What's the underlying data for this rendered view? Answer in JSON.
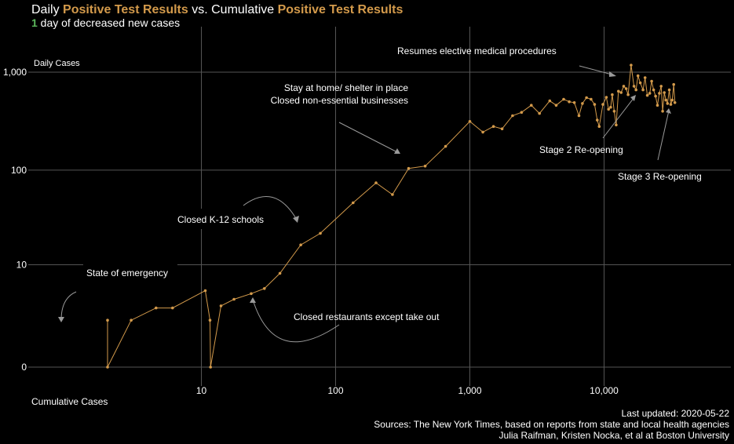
{
  "header": {
    "title_part1": "Daily ",
    "title_highlight1": "Positive Test Results",
    "title_part2": " vs. Cumulative ",
    "title_highlight2": "Positive Test Results",
    "subtitle_count": "1",
    "subtitle_text": " day of decreased new cases"
  },
  "footer": {
    "last_updated": "Last updated: 2020-05-22",
    "sources": "Sources: The New York Times, based on reports from state and local health agencies",
    "authors": "Julia Raifman,  Kristen Nocka, et al at Boston University"
  },
  "colors": {
    "series": "#d39a4b",
    "background": "#000000",
    "grid": "#555555",
    "text": "#ffffff",
    "highlight_green": "#5cb85c"
  },
  "chart_data": {
    "type": "line",
    "xscale": "log",
    "yscale": "pseudo-log",
    "xlabel": "Cumulative Cases",
    "ylabel": "Daily Cases",
    "x_ticks": [
      10,
      100,
      1000,
      10000
    ],
    "x_tick_labels": [
      "10",
      "100",
      "1,000",
      "10,000"
    ],
    "y_ticks": [
      0,
      10,
      100,
      1000
    ],
    "y_tick_labels": [
      "0",
      "10",
      "100",
      "1,000"
    ],
    "xlim": [
      1.6,
      50000
    ],
    "ylim": [
      -1,
      2000
    ],
    "grid": true,
    "series": [
      {
        "points": [
          [
            2,
            2
          ],
          [
            2,
            0
          ],
          [
            3,
            2
          ],
          [
            4.6,
            3
          ],
          [
            6.1,
            3
          ],
          [
            10.7,
            5
          ],
          [
            11.6,
            2
          ],
          [
            11.7,
            0
          ],
          [
            14,
            3.2
          ],
          [
            17.5,
            3.9
          ],
          [
            23.5,
            4.6
          ],
          [
            29.5,
            5.3
          ],
          [
            38.5,
            8
          ],
          [
            55,
            16.5
          ],
          [
            77,
            22
          ],
          [
            135,
            46
          ],
          [
            200,
            74
          ],
          [
            265,
            56
          ],
          [
            350,
            104
          ],
          [
            465,
            110
          ],
          [
            660,
            175
          ],
          [
            1000,
            315
          ],
          [
            1250,
            245
          ],
          [
            1500,
            280
          ],
          [
            1740,
            265
          ],
          [
            2080,
            360
          ],
          [
            2430,
            390
          ],
          [
            2870,
            460
          ],
          [
            3300,
            380
          ],
          [
            3940,
            510
          ],
          [
            4400,
            460
          ],
          [
            5000,
            530
          ],
          [
            5500,
            500
          ],
          [
            6000,
            490
          ],
          [
            6500,
            360
          ],
          [
            6900,
            480
          ],
          [
            7400,
            550
          ],
          [
            8000,
            530
          ],
          [
            8500,
            470
          ],
          [
            8900,
            325
          ],
          [
            9200,
            280
          ],
          [
            9800,
            470
          ],
          [
            10400,
            555
          ],
          [
            10800,
            420
          ],
          [
            11200,
            440
          ],
          [
            11500,
            590
          ],
          [
            11900,
            400
          ],
          [
            12300,
            290
          ],
          [
            12800,
            640
          ],
          [
            13400,
            620
          ],
          [
            14000,
            720
          ],
          [
            14600,
            680
          ],
          [
            15100,
            590
          ],
          [
            15900,
            1180
          ],
          [
            16700,
            720
          ],
          [
            17300,
            660
          ],
          [
            17900,
            920
          ],
          [
            18600,
            780
          ],
          [
            19500,
            660
          ],
          [
            20200,
            880
          ],
          [
            21000,
            580
          ],
          [
            21900,
            610
          ],
          [
            22600,
            810
          ],
          [
            23400,
            660
          ],
          [
            24200,
            570
          ],
          [
            25000,
            460
          ],
          [
            25800,
            610
          ],
          [
            26600,
            720
          ],
          [
            27300,
            400
          ],
          [
            28100,
            620
          ],
          [
            28900,
            520
          ],
          [
            29700,
            480
          ],
          [
            30600,
            660
          ],
          [
            31400,
            470
          ],
          [
            32200,
            520
          ],
          [
            33000,
            750
          ],
          [
            33700,
            490
          ]
        ]
      }
    ],
    "annotations": {
      "emergency": "State of emergency",
      "schools": "Closed K-12 schools",
      "restaurants": "Closed restaurants except take out",
      "stay_home_1": "Stay at home/ shelter in place",
      "stay_home_2": "Closed non-essential businesses",
      "elective": "Resumes elective medical procedures",
      "stage2": "Stage 2 Re-opening",
      "stage3": "Stage 3 Re-opening"
    }
  }
}
